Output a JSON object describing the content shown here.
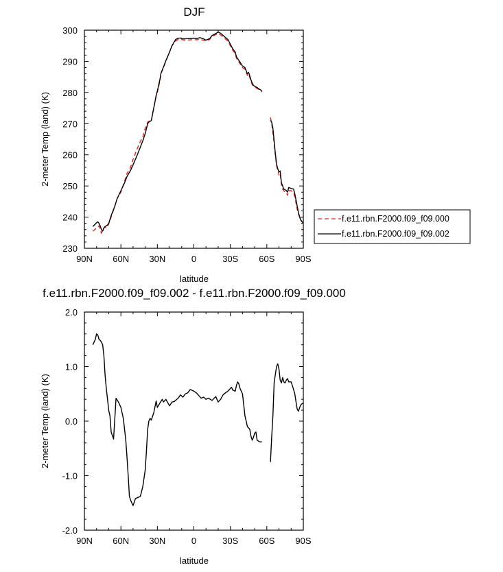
{
  "chart_data": [
    {
      "type": "line",
      "title": "DJF",
      "xlabel": "latitude",
      "ylabel": "2-meter Temp (land) (K)",
      "xlim": [
        90,
        -90
      ],
      "ylim": [
        230,
        300
      ],
      "x_ticks": [
        90,
        60,
        30,
        0,
        -30,
        -60,
        -90
      ],
      "x_tick_labels": [
        "90N",
        "60N",
        "30N",
        "0",
        "30S",
        "60S",
        "90S"
      ],
      "y_ticks": [
        230,
        240,
        250,
        260,
        270,
        280,
        290,
        300
      ],
      "y_tick_labels": [
        "230",
        "240",
        "250",
        "260",
        "270",
        "280",
        "290",
        "300"
      ],
      "legend_position": "right",
      "series": [
        {
          "name": "f.e11.rbn.F2000.f09_f09.000",
          "color": "#e0201b",
          "dash": "dashed",
          "segments": [
            {
              "x": [
                83,
                80,
                78,
                77,
                76,
                75,
                74,
                73,
                72,
                71,
                70,
                68,
                65,
                63,
                60,
                57,
                55,
                52,
                50,
                47,
                45,
                42,
                40,
                38,
                37,
                35,
                33,
                31,
                30,
                28,
                27,
                25,
                23,
                20,
                18,
                15,
                13,
                11,
                10,
                8,
                5,
                3,
                0,
                -2,
                -5,
                -8,
                -10,
                -13,
                -15,
                -18,
                -20,
                -22,
                -25,
                -28,
                -30,
                -32,
                -34,
                -35,
                -37,
                -40,
                -42,
                -44,
                -45,
                -47,
                -48,
                -49,
                -50,
                -52,
                -54,
                -56
              ],
              "y": [
                235.5,
                236.5,
                237.2,
                236.2,
                234.8,
                236.0,
                236.5,
                236.8,
                236.5,
                237.0,
                237.8,
                240.0,
                243.5,
                246.0,
                248.0,
                251.5,
                254.0,
                256.0,
                258.5,
                261.5,
                263.5,
                265.8,
                268.5,
                270.5,
                270.8,
                271.0,
                275.0,
                279.0,
                280.0,
                283.5,
                286.0,
                288.0,
                290.0,
                293.0,
                295.0,
                296.5,
                297.0,
                297.2,
                297.0,
                296.8,
                296.8,
                296.9,
                297.0,
                296.9,
                297.1,
                296.7,
                296.5,
                297.0,
                298.0,
                298.6,
                298.9,
                298.5,
                297.5,
                296.5,
                295.0,
                293.5,
                292.5,
                291.0,
                289.8,
                288.0,
                287.5,
                285.5,
                286.0,
                283.5,
                282.5,
                282.0,
                281.8,
                281.3,
                280.8,
                280.2
              ]
            },
            {
              "x": [
                -63,
                -64,
                -65,
                -66,
                -67,
                -68,
                -69,
                -70,
                -71,
                -72,
                -73,
                -74,
                -75,
                -76,
                -77,
                -78,
                -80,
                -82,
                -83,
                -84,
                -85,
                -86,
                -87,
                -88,
                -89,
                -90
              ],
              "y": [
                272.0,
                270.0,
                267.0,
                263.5,
                260.0,
                256.5,
                255.0,
                253.5,
                254.0,
                250.5,
                249.0,
                248.5,
                248.0,
                248.0,
                247.0,
                248.5,
                248.5,
                248.0,
                246.5,
                244.5,
                242.5,
                241.0,
                240.0,
                239.0,
                238.5,
                238.0
              ]
            }
          ]
        },
        {
          "name": "f.e11.rbn.F2000.f09_f09.002",
          "color": "#000000",
          "dash": "solid",
          "segments": [
            {
              "x": [
                83,
                81,
                80,
                79,
                78,
                77,
                76,
                75,
                74,
                73,
                72,
                71,
                70,
                68,
                65,
                63,
                60,
                57,
                55,
                52,
                50,
                47,
                45,
                42,
                40,
                38,
                37,
                35,
                33,
                31,
                30,
                28,
                27,
                25,
                23,
                20,
                18,
                15,
                13,
                11,
                10,
                8,
                5,
                3,
                0,
                -2,
                -5,
                -8,
                -10,
                -13,
                -15,
                -18,
                -20,
                -22,
                -25,
                -28,
                -30,
                -32,
                -34,
                -35,
                -37,
                -40,
                -42,
                -44,
                -45,
                -47,
                -48,
                -49,
                -50,
                -52,
                -54,
                -56
              ],
              "y": [
                237.0,
                237.8,
                238.2,
                238.5,
                238.0,
                237.2,
                236.0,
                235.5,
                236.5,
                237.0,
                237.2,
                237.5,
                238.0,
                240.5,
                243.5,
                246.0,
                248.5,
                251.0,
                253.0,
                255.0,
                256.8,
                259.5,
                261.5,
                264.5,
                266.8,
                270.0,
                270.5,
                271.0,
                275.0,
                279.0,
                280.5,
                284.0,
                286.2,
                288.2,
                290.2,
                293.0,
                295.0,
                297.0,
                297.4,
                297.5,
                297.3,
                297.2,
                297.3,
                297.3,
                297.4,
                297.3,
                297.6,
                297.2,
                296.8,
                297.3,
                298.3,
                298.9,
                299.4,
                299.0,
                298.0,
                297.0,
                295.5,
                294.0,
                293.0,
                291.5,
                290.3,
                288.5,
                288.0,
                286.0,
                286.5,
                284.0,
                283.0,
                282.3,
                282.0,
                281.6,
                281.0,
                280.6
              ]
            },
            {
              "x": [
                -63,
                -64,
                -65,
                -66,
                -67,
                -68,
                -69,
                -70,
                -71,
                -72,
                -73,
                -74,
                -75,
                -76,
                -77,
                -78,
                -80,
                -82,
                -83,
                -84,
                -85,
                -86,
                -87,
                -88,
                -89,
                -90
              ],
              "y": [
                271.0,
                270.5,
                268.5,
                264.5,
                260.5,
                257.0,
                255.5,
                254.5,
                254.8,
                251.0,
                250.0,
                249.0,
                248.8,
                248.5,
                248.0,
                249.5,
                249.2,
                249.0,
                247.5,
                245.5,
                243.5,
                241.5,
                240.0,
                239.0,
                238.5,
                238.2
              ]
            }
          ]
        }
      ]
    },
    {
      "type": "line",
      "title": "f.e11.rbn.F2000.f09_f09.002 - f.e11.rbn.F2000.f09_f09.000",
      "xlabel": "latitude",
      "ylabel": "2-meter Temp (land) (K)",
      "xlim": [
        90,
        -90
      ],
      "ylim": [
        -2.0,
        2.0
      ],
      "x_ticks": [
        90,
        60,
        30,
        0,
        -30,
        -60,
        -90
      ],
      "x_tick_labels": [
        "90N",
        "60N",
        "30N",
        "0",
        "30S",
        "60S",
        "90S"
      ],
      "y_ticks": [
        -2.0,
        -1.0,
        0.0,
        1.0,
        2.0
      ],
      "y_tick_labels": [
        "-2.0",
        "-1.0",
        "0.0",
        "1.0",
        "2.0"
      ],
      "series": [
        {
          "color": "#000000",
          "dash": "solid",
          "segments": [
            {
              "x": [
                83,
                81,
                80,
                79,
                78,
                77,
                76,
                75,
                74,
                73,
                72,
                71,
                70,
                69,
                68,
                66,
                64,
                62,
                60,
                58,
                56,
                55,
                54,
                53,
                52,
                50,
                48,
                46,
                44,
                42,
                40,
                39,
                38,
                37,
                36,
                35,
                33,
                31,
                30,
                28,
                26,
                25,
                23,
                20,
                18,
                16,
                13,
                11,
                9,
                7,
                5,
                3,
                1,
                0,
                -2,
                -4,
                -6,
                -8,
                -10,
                -12,
                -15,
                -18,
                -20,
                -22,
                -24,
                -26,
                -28,
                -30,
                -31,
                -32,
                -33,
                -34,
                -35,
                -36,
                -37,
                -38,
                -40,
                -42,
                -44,
                -46,
                -47,
                -48,
                -49,
                -50,
                -51,
                -52,
                -54,
                -56
              ],
              "y": [
                1.4,
                1.5,
                1.6,
                1.58,
                1.5,
                1.48,
                1.45,
                1.4,
                1.2,
                0.85,
                0.6,
                0.4,
                0.2,
                0.1,
                -0.2,
                -0.33,
                0.42,
                0.35,
                0.25,
                0.05,
                -0.35,
                -0.65,
                -1.0,
                -1.38,
                -1.45,
                -1.55,
                -1.42,
                -1.4,
                -1.38,
                -1.2,
                -0.9,
                -0.55,
                -0.15,
                0.0,
                0.05,
                0.02,
                0.15,
                0.37,
                0.25,
                0.33,
                0.4,
                0.35,
                0.4,
                0.28,
                0.35,
                0.36,
                0.42,
                0.48,
                0.44,
                0.5,
                0.52,
                0.58,
                0.56,
                0.55,
                0.52,
                0.47,
                0.42,
                0.44,
                0.4,
                0.42,
                0.38,
                0.45,
                0.35,
                0.4,
                0.48,
                0.52,
                0.55,
                0.6,
                0.62,
                0.57,
                0.56,
                0.55,
                0.65,
                0.72,
                0.68,
                0.6,
                0.5,
                0.1,
                -0.1,
                -0.15,
                -0.28,
                -0.35,
                -0.3,
                -0.22,
                -0.2,
                -0.35,
                -0.38,
                -0.38
              ]
            },
            {
              "x": [
                -63,
                -64,
                -65,
                -66,
                -67,
                -68,
                -69,
                -70,
                -71,
                -72,
                -73,
                -74,
                -75,
                -76,
                -77,
                -78,
                -80,
                -82,
                -83,
                -84,
                -85,
                -86,
                -87,
                -88,
                -89,
                -90
              ],
              "y": [
                -0.75,
                -0.3,
                0.1,
                0.7,
                0.85,
                1.0,
                1.05,
                0.95,
                0.75,
                0.7,
                0.8,
                0.72,
                0.7,
                0.75,
                0.78,
                0.72,
                0.72,
                0.58,
                0.5,
                0.35,
                0.22,
                0.18,
                0.25,
                0.3,
                0.32,
                0.33
              ]
            }
          ]
        }
      ]
    }
  ]
}
